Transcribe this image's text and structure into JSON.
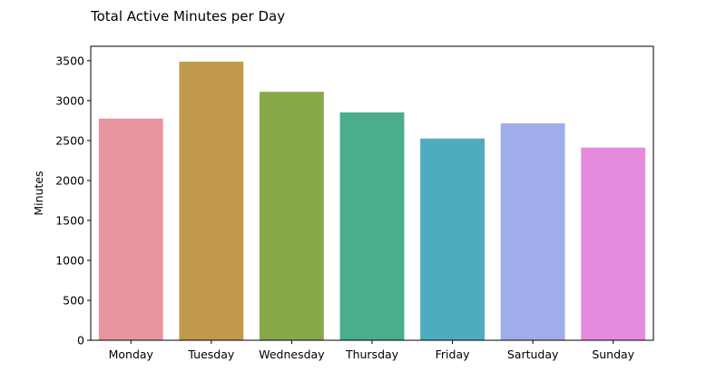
{
  "chart_data": {
    "type": "bar",
    "title": "Total Active Minutes per Day",
    "xlabel": "",
    "ylabel": "Minutes",
    "categories": [
      "Monday",
      "Tuesday",
      "Wednesday",
      "Thursday",
      "Friday",
      "Sartuday",
      "Sunday"
    ],
    "values": [
      2775,
      3487,
      3110,
      2853,
      2525,
      2716,
      2412
    ],
    "colors": [
      "#e8959f",
      "#c1994b",
      "#89a84a",
      "#4aae8d",
      "#4dacbd",
      "#a1acea",
      "#e68ae0"
    ],
    "ylim": [
      0,
      3680
    ],
    "yticks": [
      0,
      500,
      1000,
      1500,
      2000,
      2500,
      3000,
      3500
    ],
    "grid": false,
    "legend": "none"
  }
}
